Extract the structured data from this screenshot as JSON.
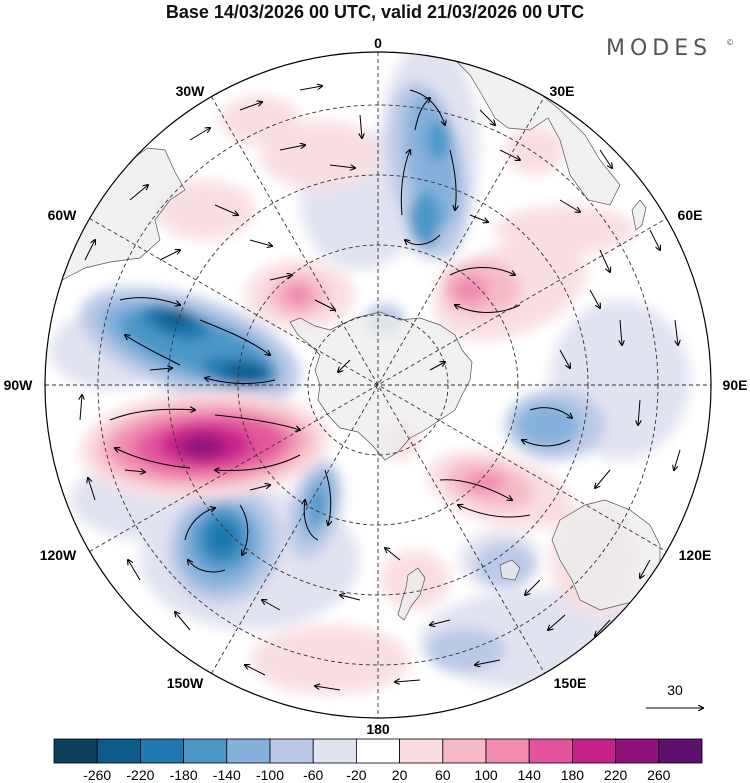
{
  "title": "Base 14/03/2026 00 UTC, valid 21/03/2026 00 UTC",
  "brand": {
    "name": "MODES",
    "mark": "©"
  },
  "map": {
    "projection": "south-polar-stereographic",
    "longitude_labels": [
      {
        "text": "0"
      },
      {
        "text": "30E"
      },
      {
        "text": "60E"
      },
      {
        "text": "90E"
      },
      {
        "text": "120E"
      },
      {
        "text": "150E"
      },
      {
        "text": "180"
      },
      {
        "text": "150W"
      },
      {
        "text": "120W"
      },
      {
        "text": "90W"
      },
      {
        "text": "60W"
      },
      {
        "text": "30W"
      }
    ],
    "wind_reference": {
      "value": "30"
    }
  },
  "colorbar": {
    "colors": [
      "#0c3f5e",
      "#0d5a8a",
      "#1f79b0",
      "#4c97c8",
      "#86b1dc",
      "#bac9e6",
      "#e2e3f1",
      "#ffffff",
      "#f9dfe3",
      "#f6b9c6",
      "#f18bb0",
      "#e4549d",
      "#c6218a",
      "#8f127b",
      "#5e106e"
    ],
    "tick_labels": [
      "-260",
      "-220",
      "-180",
      "-140",
      "-100",
      "-60",
      "-20",
      "20",
      "60",
      "100",
      "140",
      "180",
      "220",
      "260"
    ]
  },
  "colors": {
    "land": "#ececec",
    "coast": "#555555",
    "grid": "#333333"
  }
}
